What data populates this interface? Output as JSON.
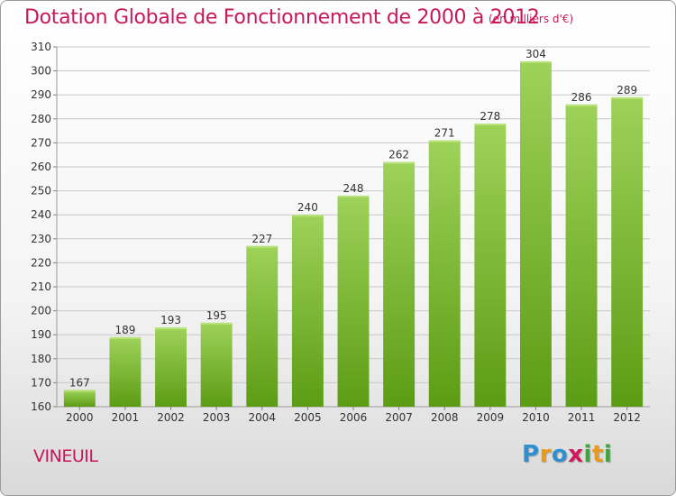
{
  "title": "Dotation Globale de Fonctionnement de 2000 à 2012",
  "subtitle": "(en milliers d'€)",
  "commune": "VINEUIL",
  "logo": {
    "p": "P",
    "r": "r",
    "o": "o",
    "x": "x",
    "i1": "i",
    "t": "t",
    "i2": "i"
  },
  "colors": {
    "accent": "#c8185a",
    "bar_top": "#9ed25a",
    "bar_bottom": "#5c9c14",
    "grid": "#c8c8c8"
  },
  "chart_data": {
    "type": "bar",
    "categories": [
      "2000",
      "2001",
      "2002",
      "2003",
      "2004",
      "2005",
      "2006",
      "2007",
      "2008",
      "2009",
      "2010",
      "2011",
      "2012"
    ],
    "values": [
      167,
      189,
      193,
      195,
      227,
      240,
      248,
      262,
      271,
      278,
      304,
      286,
      289
    ],
    "yticks": [
      160,
      170,
      180,
      190,
      200,
      210,
      220,
      230,
      240,
      250,
      260,
      270,
      280,
      290,
      300,
      310
    ],
    "ylim": [
      160,
      310
    ],
    "grid": true,
    "data_labels": true
  }
}
